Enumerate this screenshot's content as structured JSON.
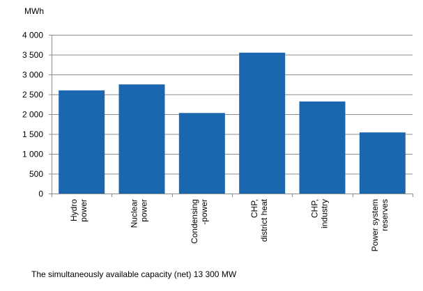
{
  "chart_data": {
    "type": "bar",
    "ylabel": "MWh",
    "ylim": [
      0,
      4000
    ],
    "yticks": [
      0,
      500,
      1000,
      1500,
      2000,
      2500,
      3000,
      3500,
      4000
    ],
    "ytick_labels": [
      "0",
      "500",
      "1 000",
      "1 500",
      "2 000",
      "2 500",
      "3 000",
      "3 500",
      "4 000"
    ],
    "grid": true,
    "categories": [
      [
        "Hydro",
        "power"
      ],
      [
        "Nuclear",
        "power"
      ],
      [
        "Condensing",
        "-power"
      ],
      [
        "CHP,",
        "district heat"
      ],
      [
        "CHP,",
        "industry"
      ],
      [
        "Power system",
        "reserves"
      ]
    ],
    "values": [
      2600,
      2750,
      2030,
      3550,
      2320,
      1540
    ],
    "bar_color": "#1a67b0",
    "note": "The simultaneously available capacity (net) 13 300 MW"
  }
}
